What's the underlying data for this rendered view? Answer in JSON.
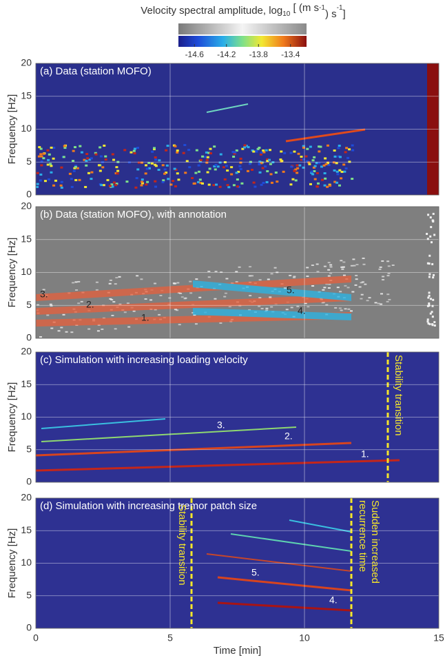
{
  "chart_data": [
    {
      "type": "spectrogram",
      "title": "(a) Data (station MOFO)",
      "ylabel": "Frequency [Hz]",
      "xlim": [
        0,
        15
      ],
      "xticks": [
        0,
        5,
        10,
        15
      ],
      "ylim": [
        0,
        20
      ],
      "yticks": [
        0,
        5,
        10,
        15,
        20
      ],
      "grid": true
    },
    {
      "type": "spectrogram",
      "title": "(b) Data (station MOFO), with annotation",
      "ylabel": "Frequency [Hz]",
      "xlim": [
        0,
        15
      ],
      "xticks": [
        0,
        5,
        10,
        15
      ],
      "ylim": [
        0,
        20
      ],
      "yticks": [
        0,
        5,
        10,
        15,
        20
      ],
      "grid": true,
      "annotations": [
        "1.",
        "2.",
        "3.",
        "4.",
        "5."
      ]
    },
    {
      "type": "spectrogram",
      "title": "(c) Simulation with increasing loading velocity",
      "ylabel": "Frequency [Hz]",
      "xlim": [
        0,
        15
      ],
      "xticks": [
        0,
        5,
        10,
        15
      ],
      "ylim": [
        0,
        20
      ],
      "yticks": [
        0,
        5,
        10,
        15,
        20
      ],
      "grid": true,
      "annotations": [
        "1.",
        "2.",
        "3.",
        "Stability transition"
      ]
    },
    {
      "type": "spectrogram",
      "title": "(d) Simulation with increasing tremor patch size",
      "ylabel": "Frequency [Hz]",
      "xlabel": "Time [min]",
      "xlim": [
        0,
        15
      ],
      "xticks": [
        0,
        5,
        10,
        15
      ],
      "ylim": [
        0,
        20
      ],
      "yticks": [
        0,
        5,
        10,
        15,
        20
      ],
      "grid": true,
      "annotations": [
        "4.",
        "5.",
        "Stability transition",
        "Sudden increased",
        "recurrence time"
      ]
    }
  ],
  "colorbar": {
    "label": [
      "Velocity spectral amplitude, log",
      "10",
      " [ (m s",
      "-1",
      ") s",
      "-1",
      "]"
    ],
    "clim": [
      -14.8,
      -13.2
    ],
    "ticks": [
      -14.6,
      -14.2,
      -13.8,
      -13.4
    ]
  }
}
